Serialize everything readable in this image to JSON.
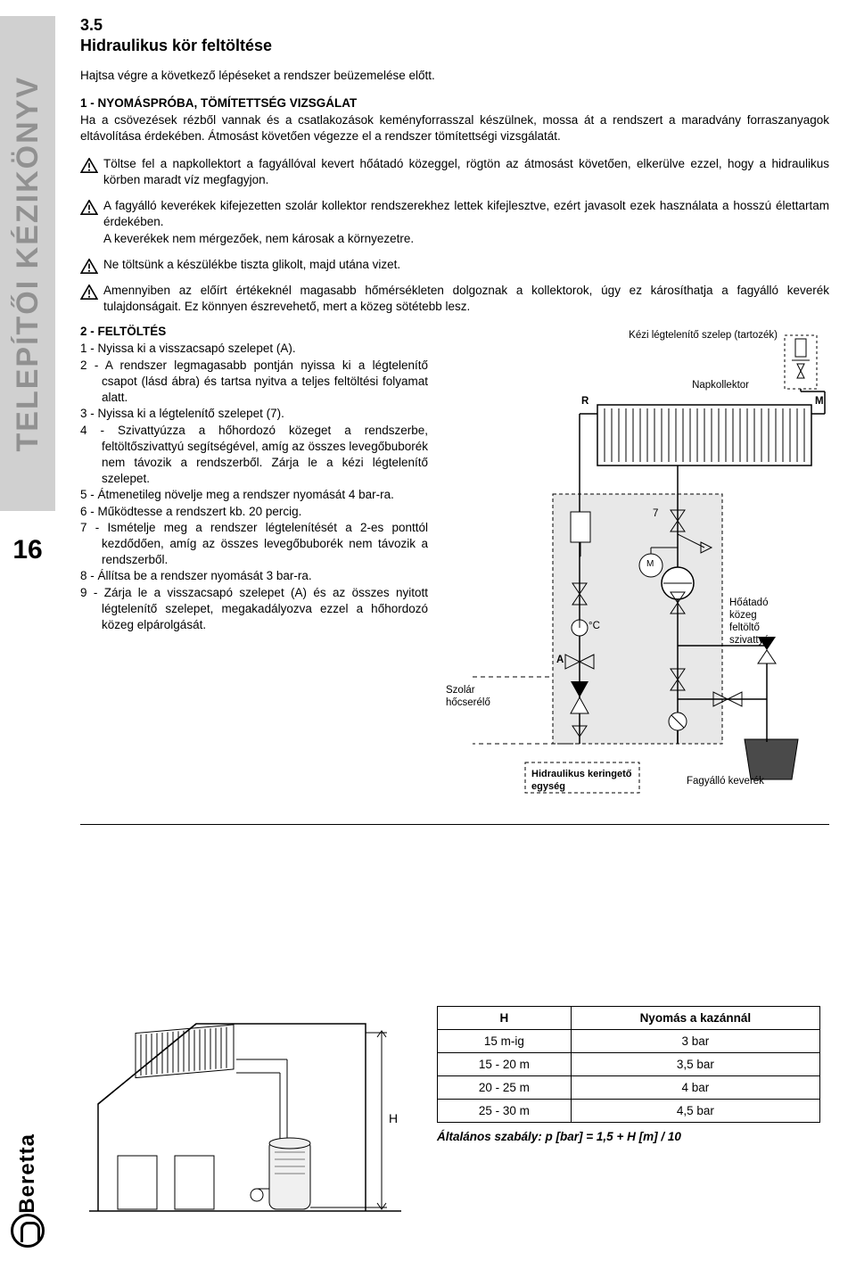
{
  "sidebar": {
    "tab_label": "TELEPÍTŐI KÉZIKÖNYV",
    "page_number": "16",
    "brand": "Beretta"
  },
  "section": {
    "number": "3.5",
    "title": "Hidraulikus kör feltöltése"
  },
  "intro": "Hajtsa végre a következő lépéseket a rendszer beüzemelése előtt.",
  "sub1_head": "1 - NYOMÁSPRÓBA, TÖMÍTETTSÉG VIZSGÁLAT",
  "sub1_para": "Ha a csövezések rézből vannak és a csatlakozások keményforrasszal készülnek, mossa át a rendszert a maradvány forraszanyagok eltávolítása érdekében. Átmosást követően végezze el a rendszer tömítettségi vizsgálatát.",
  "warnings": [
    "Töltse fel a napkollektort a fagyállóval kevert hőátadó közeggel, rögtön az átmosást követően, elkerülve ezzel, hogy a hidraulikus körben maradt víz megfagyjon.",
    "A fagyálló keverékek kifejezetten szolár kollektor rendszerekhez lettek kifejlesztve, ezért javasolt ezek használata a hosszú élettartam érdekében.\nA keverékek nem mérgezőek, nem károsak a környezetre.",
    "Ne töltsünk a készülékbe tiszta glikolt, majd utána vizet.",
    "Amennyiben az előírt értékeknél magasabb hőmérsékleten dolgoznak a kollektorok, úgy ez károsíthatja a fagyálló keverék tulajdonságait. Ez könnyen észrevehető, mert a közeg sötétebb lesz."
  ],
  "sub2_head": "2 - FELTÖLTÉS",
  "steps": [
    "1 - Nyissa ki a visszacsapó szelepet (A).",
    "2 - A rendszer legmagasabb pontján nyissa ki a légtelenítő csapot (lásd ábra) és tartsa nyitva a teljes feltöltési folyamat alatt.",
    "3 - Nyissa ki a légtelenítő szelepet (7).",
    "4 - Szivattyúzza a hőhordozó közeget a rendszerbe, feltöltőszivattyú segítségével, amíg az összes levegőbuborék nem távozik a rendszerből. Zárja le a kézi légtelenítő szelepet.",
    "5 - Átmenetileg növelje meg a rendszer nyomását 4 bar-ra.",
    "6 - Működtesse a rendszert kb. 20 percig.",
    "7 - Ismételje meg a rendszer légtelenítését a 2-es ponttól kezdődően, amíg az összes levegőbuborék nem távozik a rendszerből.",
    "8 - Állítsa be a rendszer nyomását 3 bar-ra.",
    "9 - Zárja le a visszacsapó szelepet (A) és az összes nyitott légtelenítő szelepet, megakadályozva ezzel a hőhordozó közeg elpárolgását."
  ],
  "diagram": {
    "air_vent_label": "Kézi légtelenítő szelep\n(tartozék)",
    "collector_label": "Napkollektor",
    "R": "R",
    "M": "M",
    "seven": "7",
    "A": "A",
    "tempC": "°C",
    "m_circle": "M",
    "heat_exchanger": "Szolár\nhőcserélő",
    "fill_pump": "Hőátadó\nközeg\nfeltöltő\nszivattyú",
    "hydraulic_unit": "Hidraulikus keringető\negység",
    "antifreeze": "Fagyálló keverék"
  },
  "pressure_table": {
    "headers": [
      "H",
      "Nyomás a kazánnál"
    ],
    "rows": [
      [
        "15 m-ig",
        "3 bar"
      ],
      [
        "15 - 20 m",
        "3,5 bar"
      ],
      [
        "20 - 25 m",
        "4 bar"
      ],
      [
        "25 - 30 m",
        "4,5 bar"
      ]
    ],
    "rule": "Általános szabály: p [bar] = 1,5 + H [m] / 10"
  },
  "house_diagram": {
    "H_label": "H"
  }
}
